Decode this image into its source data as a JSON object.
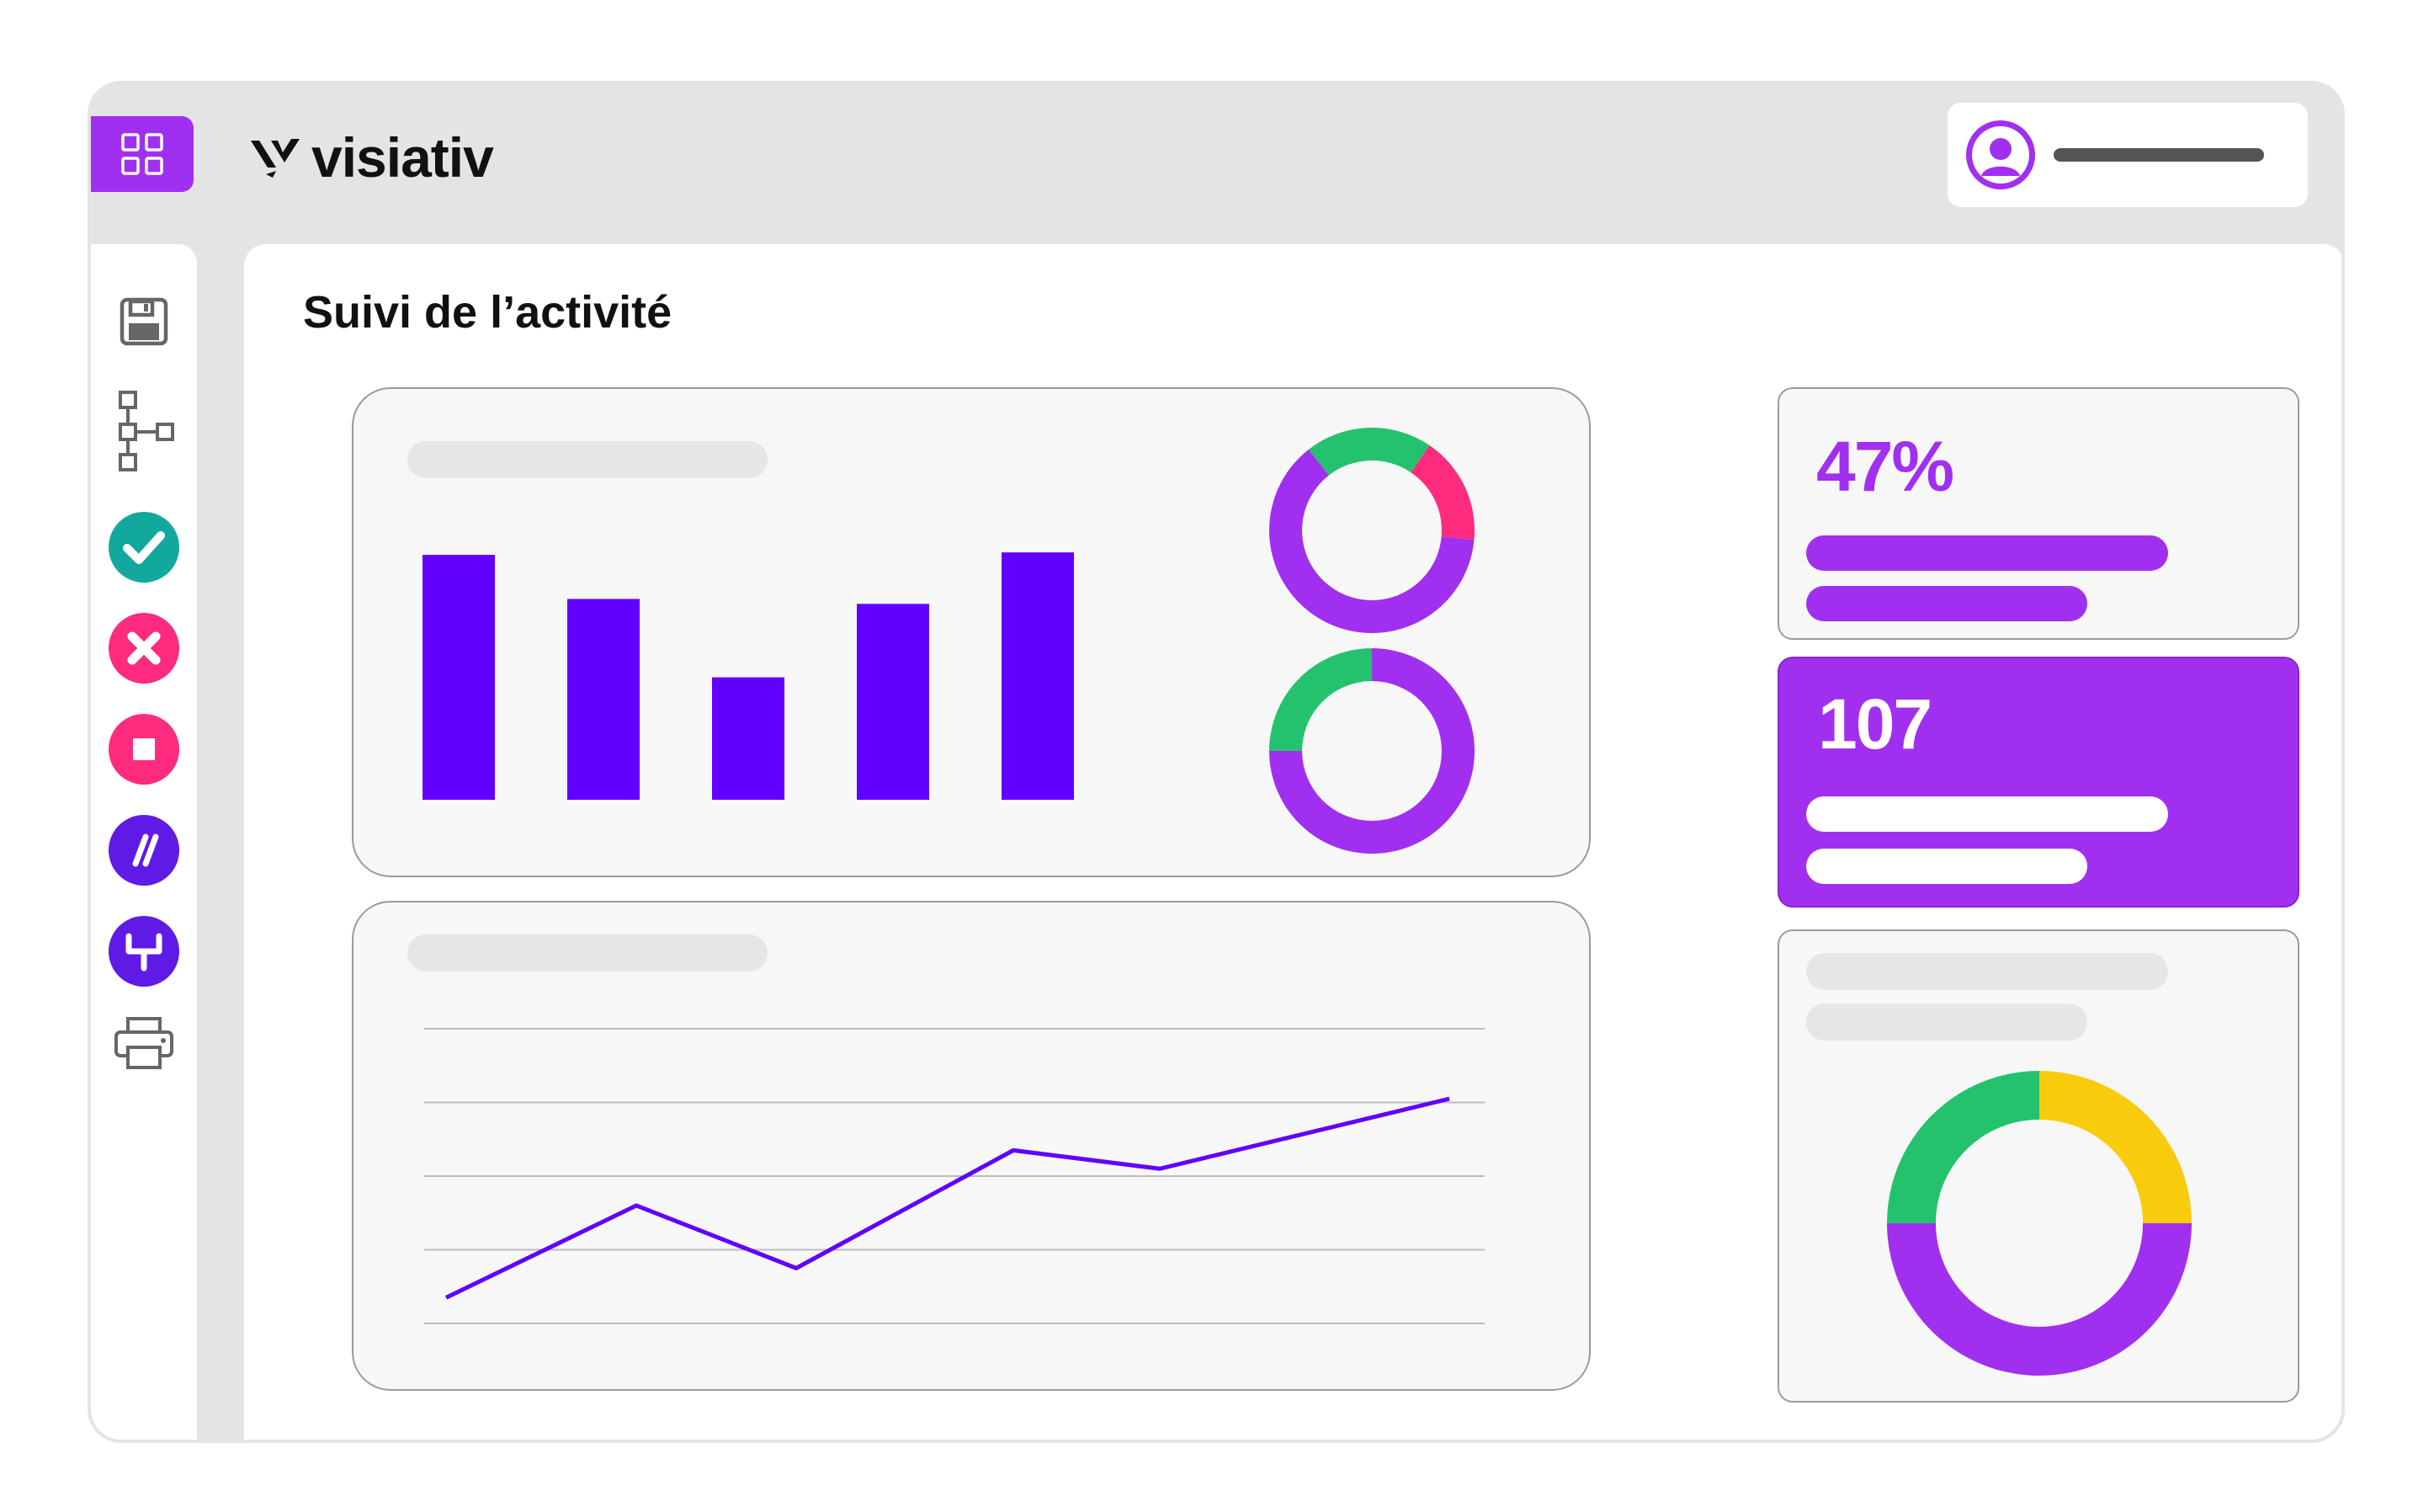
{
  "app": {
    "brand": "visiativ",
    "page_title": "Suivi de l’activité"
  },
  "colors": {
    "accent": "#a12ff0",
    "chart_blue": "#6200ff",
    "green": "#25c26e",
    "pink": "#ff2b7e",
    "teal": "#13a89e",
    "yellow": "#f8cc0c",
    "indigo": "#5f1ae6"
  },
  "header": {
    "menu_icon": "grid-icon",
    "user_icon": "user-avatar-icon"
  },
  "sidebar": {
    "items": [
      {
        "name": "save",
        "icon": "save-icon"
      },
      {
        "name": "hierarchy",
        "icon": "hierarchy-icon"
      },
      {
        "name": "approve",
        "icon": "check-circle-icon"
      },
      {
        "name": "reject",
        "icon": "x-circle-icon"
      },
      {
        "name": "stop",
        "icon": "stop-circle-icon"
      },
      {
        "name": "edit",
        "icon": "slash-circle-icon"
      },
      {
        "name": "structure",
        "icon": "tree-circle-icon"
      },
      {
        "name": "print",
        "icon": "printer-icon"
      }
    ]
  },
  "kpis": {
    "percent": "47%",
    "count": "107"
  },
  "chart_data": [
    {
      "type": "bar",
      "values": [
        1.0,
        0.82,
        0.5,
        0.8,
        1.01
      ],
      "ylim": [
        0,
        1.1
      ]
    },
    {
      "type": "pie",
      "variant": "donut",
      "slices": [
        {
          "value": 0.2,
          "color": "#25c26e"
        },
        {
          "value": 0.17,
          "color": "#ff2b7e"
        },
        {
          "value": 0.63,
          "color": "#a12ff0"
        }
      ]
    },
    {
      "type": "pie",
      "variant": "donut",
      "slices": [
        {
          "value": 0.75,
          "color": "#a12ff0"
        },
        {
          "value": 0.25,
          "color": "#25c26e"
        }
      ]
    },
    {
      "type": "line",
      "x": [
        1,
        2,
        3,
        4,
        5,
        6,
        7
      ],
      "values": [
        0.35,
        1.6,
        0.75,
        2.35,
        2.1,
        3.05,
        3.05
      ],
      "ylim": [
        0,
        4
      ]
    },
    {
      "type": "pie",
      "variant": "donut",
      "slices": [
        {
          "value": 0.25,
          "color": "#f8cc0c"
        },
        {
          "value": 0.5,
          "color": "#a12ff0"
        },
        {
          "value": 0.25,
          "color": "#25c26e"
        }
      ]
    }
  ]
}
